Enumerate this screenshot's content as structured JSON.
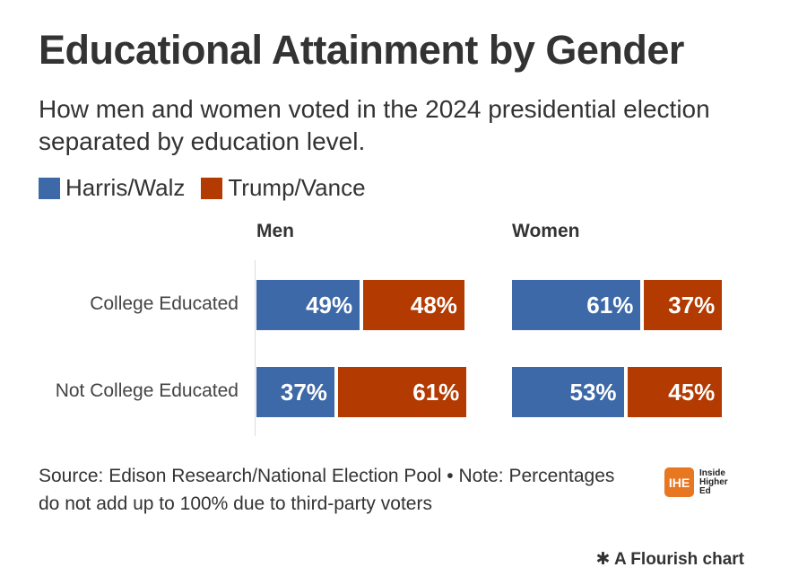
{
  "chart_data": {
    "type": "bar",
    "title": "Educational Attainment by Gender",
    "subtitle": "How men and women voted in the 2024 presidential election separated by education level.",
    "legend": [
      {
        "name": "Harris/Walz",
        "color": "#3d69a8"
      },
      {
        "name": "Trump/Vance",
        "color": "#b33a00"
      }
    ],
    "legend_position": "top-left",
    "categories": [
      "College Educated",
      "Not College Educated"
    ],
    "panels": [
      {
        "name": "Men",
        "series": [
          {
            "name": "Harris/Walz",
            "values": [
              49,
              37
            ]
          },
          {
            "name": "Trump/Vance",
            "values": [
              48,
              61
            ]
          }
        ]
      },
      {
        "name": "Women",
        "series": [
          {
            "name": "Harris/Walz",
            "values": [
              61,
              53
            ]
          },
          {
            "name": "Trump/Vance",
            "values": [
              37,
              45
            ]
          }
        ]
      }
    ],
    "xlim": [
      0,
      100
    ]
  },
  "footer": {
    "source": "Source: Edison Research/National Election Pool • Note: Percentages do not add up to 100% due to third-party voters",
    "logo_mark": "IHE",
    "logo_text": [
      "Inside",
      "Higher",
      "Ed"
    ],
    "flourish": "✱ A Flourish chart"
  }
}
